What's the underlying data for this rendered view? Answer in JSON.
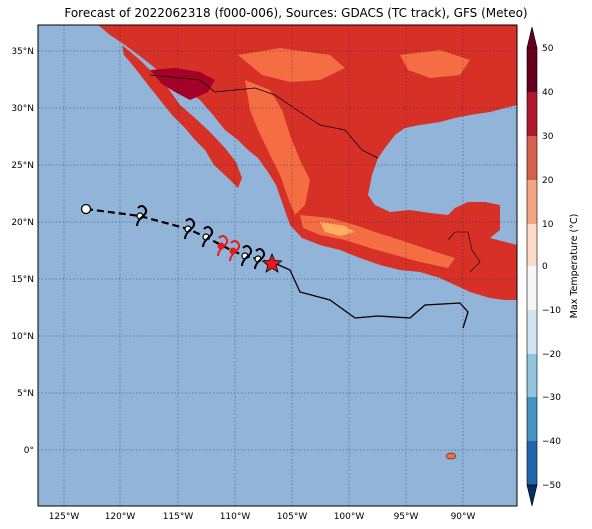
{
  "title": "Forecast of 2022062318 (f000-006), Sources: GDACS (TC track), GFS (Meteo)",
  "map": {
    "lat_ticks": [
      "35°N",
      "30°N",
      "25°N",
      "20°N",
      "15°N",
      "10°N",
      "5°N",
      "0°"
    ],
    "lon_ticks": [
      "125°W",
      "120°W",
      "115°W",
      "110°W",
      "105°W",
      "100°W",
      "95°W",
      "90°W"
    ],
    "ocean_color": "#92b4d8",
    "grid": "dotted"
  },
  "colorbar": {
    "label": "Max Temperature (°C)",
    "ticks": [
      "50",
      "40",
      "30",
      "20",
      "10",
      "0",
      "−10",
      "−20",
      "−30",
      "−40",
      "−50"
    ],
    "colors": [
      "#67001f",
      "#b2182b",
      "#d6604d",
      "#f4a582",
      "#fddbc7",
      "#f7f7f7",
      "#d1e5f0",
      "#92c5de",
      "#4393c3",
      "#2166ac",
      "#053061"
    ]
  },
  "track": {
    "points_lonlat": [
      [
        -123,
        21.1
      ],
      [
        -118.3,
        20.5
      ],
      [
        -114,
        19.3
      ],
      [
        -112.4,
        18.6
      ],
      [
        -111.1,
        17.9
      ],
      [
        -110,
        17.4
      ],
      [
        -108.9,
        17.0
      ],
      [
        -107.9,
        16.8
      ],
      [
        -106.7,
        16.4
      ]
    ],
    "current_position_marker": "red-star",
    "storm_symbol_colors": [
      "black",
      "black",
      "black",
      "red",
      "red",
      "black",
      "black"
    ]
  }
}
